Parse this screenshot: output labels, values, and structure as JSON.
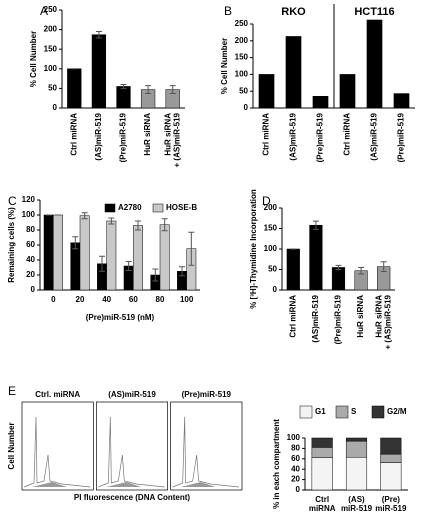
{
  "chart_data": [
    {
      "type": "bar",
      "panel": "A",
      "ylabel": "% Cell Number",
      "categories": [
        [
          "Ctrl miRNA"
        ],
        [
          "(AS)miR-519"
        ],
        [
          "(Pre)miR-519"
        ],
        [
          "HuR siRNA"
        ],
        [
          "HuR siRNA",
          "+ (AS)miR-519"
        ]
      ],
      "values": [
        100,
        187,
        55,
        47,
        47
      ],
      "errors": [
        0,
        8,
        5,
        10,
        10
      ],
      "colors": [
        "#000000",
        "#000000",
        "#000000",
        "#999999",
        "#999999"
      ],
      "ylim": [
        0,
        250
      ],
      "yticks": [
        0,
        50,
        100,
        150,
        200,
        250
      ]
    },
    {
      "type": "group-bar",
      "panel": "B",
      "ylabel": "% Cell Number",
      "categories": [
        [
          "Ctrl miRNA"
        ],
        [
          "(AS)miR-519"
        ],
        [
          "(Pre)miR-519"
        ]
      ],
      "series": [
        {
          "name": "RKO",
          "color": "#000000",
          "values": [
            100,
            213,
            35
          ]
        },
        {
          "name": "HCT116",
          "color": "#000000",
          "values": [
            100,
            262,
            43
          ]
        }
      ],
      "ylim": [
        0,
        250
      ],
      "yticks": [
        0,
        50,
        100,
        150,
        200,
        250
      ]
    },
    {
      "type": "grouped-bar",
      "panel": "C",
      "ylabel": "Remaining cells (%)",
      "xlabel": "(Pre)miR-519 (nM)",
      "categories": [
        0,
        20,
        40,
        60,
        80,
        100
      ],
      "series": [
        {
          "name": "A2780",
          "color": "#000000",
          "values": [
            100,
            63,
            35,
            32,
            20,
            25
          ],
          "errors": [
            0,
            8,
            10,
            6,
            8,
            6
          ]
        },
        {
          "name": "HOSE-B",
          "color": "#c8c8c8",
          "values": [
            100,
            99,
            92,
            86,
            87,
            55
          ],
          "errors": [
            0,
            4,
            4,
            6,
            8,
            22
          ]
        }
      ],
      "ylim": [
        0,
        120
      ],
      "yticks": [
        0,
        20,
        40,
        60,
        80,
        100,
        120
      ],
      "legend": "top-right"
    },
    {
      "type": "bar",
      "panel": "D",
      "ylabel": "% [³H]-Thymidine Incorporation",
      "categories": [
        [
          "Ctrl miRNA"
        ],
        [
          "(AS)miR-519"
        ],
        [
          "(Pre)miR-519"
        ],
        [
          "HuR siRNA"
        ],
        [
          "HuR siRNA",
          "+ (AS)miR-519"
        ]
      ],
      "values": [
        100,
        158,
        55,
        47,
        57
      ],
      "errors": [
        0,
        10,
        5,
        8,
        12
      ],
      "colors": [
        "#000000",
        "#000000",
        "#000000",
        "#999999",
        "#999999"
      ],
      "ylim": [
        0,
        200
      ],
      "yticks": [
        0,
        50,
        100,
        150,
        200
      ]
    },
    {
      "type": "flow",
      "panel": "E",
      "titles": [
        "Ctrl. miRNA",
        "(AS)miR-519",
        "(Pre)miR-519"
      ],
      "ylabel": "Cell Number",
      "xlabel": "PI fluorescence (DNA Content)"
    },
    {
      "type": "stacked-bar",
      "ylabel": "% in each compartment",
      "categories": [
        [
          "Ctrl",
          "miRNA"
        ],
        [
          "(AS)",
          "miR-519"
        ],
        [
          "(Pre)",
          "miR-519"
        ]
      ],
      "series": [
        {
          "name": "G1",
          "color": "#f4f4f4",
          "values": [
            62,
            63,
            53
          ]
        },
        {
          "name": "S",
          "color": "#aaaaaa",
          "values": [
            20,
            31,
            16
          ]
        },
        {
          "name": "G2/M",
          "color": "#333333",
          "values": [
            18,
            6,
            31
          ]
        }
      ],
      "ylim": [
        0,
        100
      ],
      "yticks": [
        0,
        20,
        40,
        60,
        80,
        100
      ],
      "legend": "top"
    }
  ]
}
